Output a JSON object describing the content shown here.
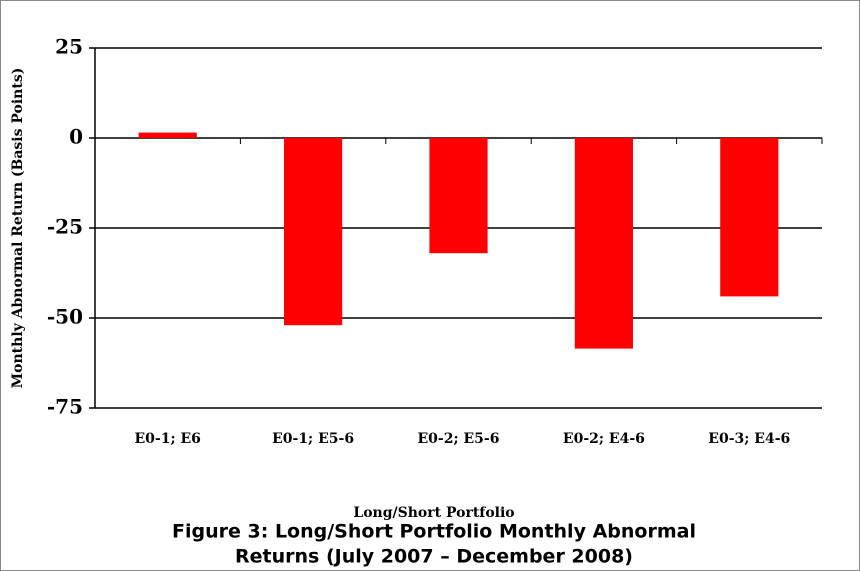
{
  "chart_data": {
    "type": "bar",
    "title": [
      "Figure 3: Long/Short Portfolio Monthly Abnormal",
      "Returns (July 2007 – December 2008)"
    ],
    "x_label": "Long/Short Portfolio",
    "y_label": "Monthly Abnormal Return (Basis Points)",
    "categories": [
      "E0-1; E6",
      "E0-1; E5-6",
      "E0-2; E5-6",
      "E0-2; E4-6",
      "E0-3; E4-6"
    ],
    "values": [
      1.5,
      -52,
      -32,
      -58.5,
      -44
    ],
    "color": "#ff0000",
    "ylim": [
      -75,
      25
    ],
    "yticks": [
      25,
      0,
      -25,
      -50,
      -75
    ],
    "grid": true
  }
}
